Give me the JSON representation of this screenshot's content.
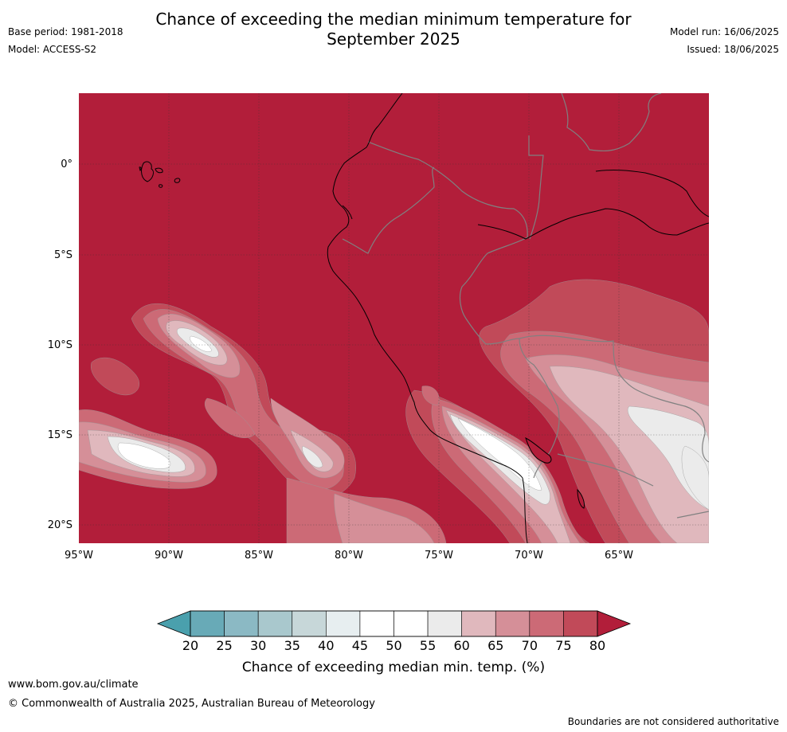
{
  "title": "Chance of exceeding the median minimum temperature for\nSeptember 2025",
  "meta_left": {
    "base_period": "Base period: 1981-2018",
    "model": "Model: ACCESS-S2"
  },
  "meta_right": {
    "model_run": "Model run: 16/06/2025",
    "issued": "Issued: 18/06/2025"
  },
  "map": {
    "lat_labels": [
      "0°",
      "5°S",
      "10°S",
      "15°S",
      "20°S"
    ],
    "lon_labels": [
      "95°W",
      "90°W",
      "85°W",
      "80°W",
      "75°W",
      "70°W",
      "65°W"
    ],
    "land_color_note": "",
    "colors": {
      "dominant": "#b21e3a",
      "c75": "#c14a59",
      "c70": "#cc6a76",
      "c65": "#d58f98",
      "c60": "#e0b8bd",
      "c55": "#ebebeb",
      "c50": "#ffffff",
      "border_country": "#808080",
      "coast": "#000000"
    }
  },
  "colorbar": {
    "tick_labels": [
      "20",
      "25",
      "30",
      "35",
      "40",
      "45",
      "50",
      "55",
      "60",
      "65",
      "70",
      "75",
      "80"
    ],
    "colors": [
      "#68aab7",
      "#8bb9c4",
      "#a9c8cd",
      "#c7d7d9",
      "#e7eef0",
      "#ffffff",
      "#ffffff",
      "#ebebeb",
      "#e0b8bd",
      "#d58f98",
      "#cc6a76",
      "#c14a59"
    ],
    "under_color": "#4aa0ad",
    "over_color": "#b21e3a",
    "label": "Chance of exceeding median min. temp. (%)"
  },
  "footer": {
    "website": "www.bom.gov.au/climate",
    "copyright": "© Commonwealth of Australia 2025, Australian Bureau of Meteorology",
    "disclaimer": "Boundaries are not considered authoritative"
  }
}
